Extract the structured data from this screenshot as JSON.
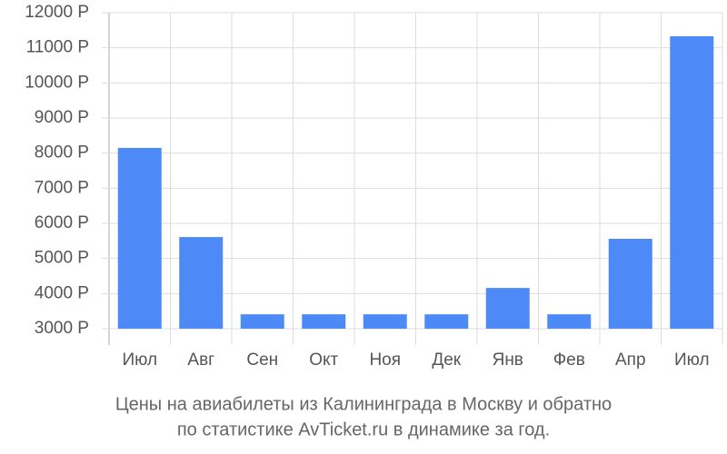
{
  "chart_data": {
    "type": "bar",
    "title": [
      "Цены на авиабилеты из Калининграда в Москву и обратно",
      "по статистике AvTicket.ru в динамике за год."
    ],
    "categories": [
      "Июл",
      "Авг",
      "Сен",
      "Окт",
      "Ноя",
      "Дек",
      "Янв",
      "Фев",
      "Апр",
      "Июл"
    ],
    "values": [
      8150,
      5610,
      3410,
      3410,
      3410,
      3410,
      4160,
      3410,
      5560,
      11330
    ],
    "color": "#4d8af7",
    "ylim": [
      3000,
      12000
    ],
    "yticks": [
      {
        "value": 3000,
        "label": "3000 Р"
      },
      {
        "value": 4000,
        "label": "4000 Р"
      },
      {
        "value": 5000,
        "label": "5000 Р"
      },
      {
        "value": 6000,
        "label": "6000 Р"
      },
      {
        "value": 7000,
        "label": "7000 Р"
      },
      {
        "value": 8000,
        "label": "8000 Р"
      },
      {
        "value": 9000,
        "label": "9000 Р"
      },
      {
        "value": 10000,
        "label": "10000 Р"
      },
      {
        "value": 11000,
        "label": "11000 Р"
      },
      {
        "value": 12000,
        "label": "12000 Р"
      }
    ],
    "grid": true
  }
}
